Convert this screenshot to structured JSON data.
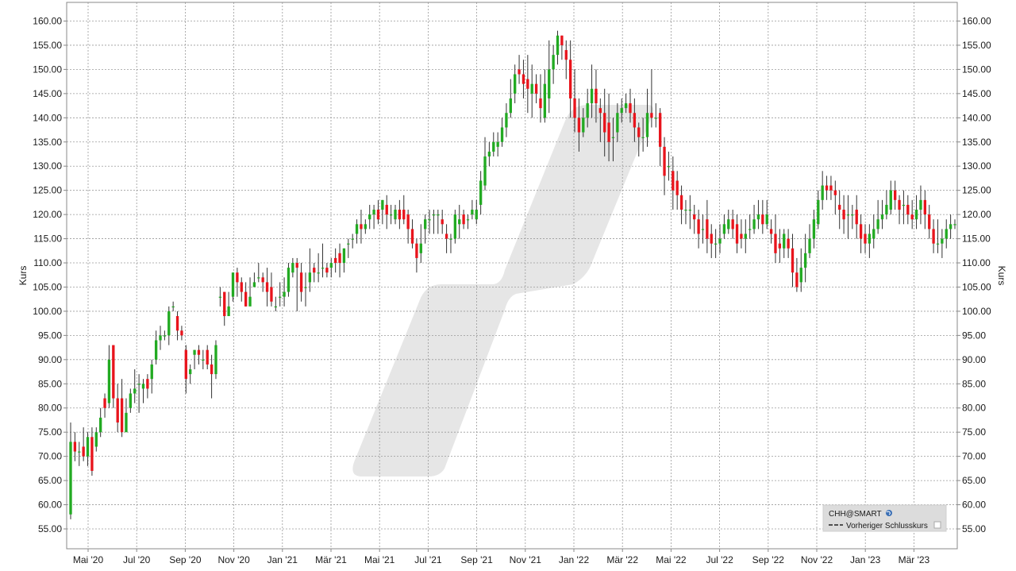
{
  "colors": {
    "up": "#22aa22",
    "down": "#e8141c",
    "grid": "#9a9a9a",
    "frame": "#888888",
    "watermark": "#e6e6e6",
    "legend_bg": "#dcdcdc"
  },
  "legend": {
    "symbol": "CHH@SMART",
    "symbol_icon": "globe-icon",
    "prev_close_label": "Vorheriger Schlusskurs"
  },
  "chart_data": {
    "type": "candlestick",
    "ylabel": "Kurs",
    "ylim": [
      51,
      163
    ],
    "y_ticks": [
      55,
      60,
      65,
      70,
      75,
      80,
      85,
      90,
      95,
      100,
      105,
      110,
      115,
      120,
      125,
      130,
      135,
      140,
      145,
      150,
      155,
      160
    ],
    "y_tick_labels": [
      "55.00",
      "60.00",
      "65.00",
      "70.00",
      "75.00",
      "80.00",
      "85.00",
      "90.00",
      "95.00",
      "100.00",
      "105.00",
      "110.00",
      "115.00",
      "120.00",
      "125.00",
      "130.00",
      "135.00",
      "140.00",
      "145.00",
      "150.00",
      "155.00",
      "160.00"
    ],
    "x_tick_labels": [
      "Mai '20",
      "Jul '20",
      "Sep '20",
      "Nov '20",
      "Jan '21",
      "Mär '21",
      "Mai '21",
      "Jul '21",
      "Sep '21",
      "Nov '21",
      "Jan '22",
      "Mär '22",
      "Mai '22",
      "Jul '22",
      "Sep '22",
      "Nov '22",
      "Jan '23",
      "Mär '23"
    ],
    "grid": true,
    "legend_position": "bottom-right",
    "candles": [
      [
        58,
        73,
        57,
        77
      ],
      [
        73,
        71,
        69,
        75
      ],
      [
        71,
        71,
        68,
        73
      ],
      [
        72,
        70,
        69,
        76
      ],
      [
        70,
        74,
        68,
        75
      ],
      [
        74,
        67,
        66,
        76
      ],
      [
        72,
        75,
        71,
        76
      ],
      [
        75,
        78,
        74,
        80
      ],
      [
        82,
        80,
        78,
        83
      ],
      [
        81,
        90,
        80,
        93
      ],
      [
        93,
        82,
        80,
        93
      ],
      [
        82,
        77,
        75,
        85
      ],
      [
        82,
        75,
        74,
        86
      ],
      [
        75,
        79,
        75,
        82
      ],
      [
        80,
        83,
        79,
        84
      ],
      [
        83,
        84,
        81,
        88
      ],
      [
        85,
        85,
        79,
        87
      ],
      [
        84,
        85,
        81,
        86
      ],
      [
        86,
        84,
        82,
        87
      ],
      [
        86,
        89,
        83,
        90
      ],
      [
        90,
        94,
        89,
        96
      ],
      [
        94,
        95,
        92,
        97
      ],
      [
        95,
        95,
        94,
        96
      ],
      [
        95,
        100,
        93,
        101
      ],
      [
        101,
        101,
        100,
        102
      ],
      [
        99,
        96,
        94,
        100
      ],
      [
        96,
        95,
        94,
        97
      ],
      [
        92,
        86,
        83,
        93
      ],
      [
        87,
        88,
        85,
        89
      ],
      [
        91,
        92,
        88,
        92
      ],
      [
        92,
        91,
        89,
        93
      ],
      [
        90,
        90,
        88,
        92
      ],
      [
        92,
        89,
        88,
        93
      ],
      [
        89,
        87,
        82,
        91
      ],
      [
        87,
        93,
        86,
        94
      ],
      [
        103,
        103,
        101,
        105
      ],
      [
        104,
        99,
        97,
        104
      ],
      [
        99,
        101,
        99,
        104
      ],
      [
        103,
        108,
        102,
        108
      ],
      [
        108,
        106,
        103,
        109
      ],
      [
        106,
        104,
        102,
        107
      ],
      [
        104,
        101,
        101,
        106
      ],
      [
        101,
        103,
        102,
        107
      ],
      [
        105,
        106,
        105,
        108
      ],
      [
        107,
        107,
        106,
        110
      ],
      [
        107,
        106,
        104,
        108
      ],
      [
        106,
        104,
        101,
        109
      ],
      [
        105,
        102,
        101,
        108
      ],
      [
        101,
        101,
        100,
        103
      ],
      [
        103,
        103,
        101,
        106
      ],
      [
        103,
        104,
        101,
        107
      ],
      [
        104,
        109,
        103,
        110
      ],
      [
        108,
        110,
        107,
        111
      ],
      [
        110,
        109,
        100,
        111
      ],
      [
        108,
        104,
        102,
        110
      ],
      [
        105,
        105,
        101,
        108
      ],
      [
        106,
        108,
        104,
        113
      ],
      [
        109,
        108,
        106,
        110
      ],
      [
        108,
        108,
        106,
        112
      ],
      [
        109,
        109,
        107,
        114
      ],
      [
        109,
        108,
        107,
        110
      ],
      [
        109,
        110,
        107,
        111
      ],
      [
        111,
        110,
        108,
        113
      ],
      [
        112,
        110,
        107,
        114
      ],
      [
        110,
        113,
        108,
        113
      ],
      [
        114,
        114,
        111,
        115
      ],
      [
        115,
        115,
        113,
        116
      ],
      [
        116,
        118,
        114,
        119
      ],
      [
        118,
        117,
        114,
        121
      ],
      [
        117,
        118,
        116,
        119
      ],
      [
        119,
        120,
        117,
        122
      ],
      [
        120,
        121,
        117,
        122
      ],
      [
        121,
        119,
        118,
        123
      ],
      [
        121,
        123,
        118,
        123
      ],
      [
        122,
        120,
        117,
        124
      ],
      [
        120,
        120,
        118,
        122
      ],
      [
        119,
        121,
        118,
        122
      ],
      [
        121,
        119,
        117,
        123
      ],
      [
        121,
        119,
        118,
        124
      ],
      [
        120,
        117,
        114,
        121
      ],
      [
        117,
        114,
        113,
        119
      ],
      [
        114,
        111,
        108,
        115
      ],
      [
        112,
        114,
        110,
        118
      ],
      [
        117,
        119,
        114,
        120
      ],
      [
        119,
        119,
        116,
        121
      ],
      [
        120,
        120,
        116,
        121
      ],
      [
        120,
        120,
        116,
        121
      ],
      [
        119,
        118,
        116,
        121
      ],
      [
        116,
        115,
        112,
        118
      ],
      [
        115,
        115,
        112,
        116
      ],
      [
        115,
        120,
        114,
        121
      ],
      [
        118,
        119,
        115,
        122
      ],
      [
        120,
        118,
        117,
        121
      ],
      [
        119,
        119,
        117,
        120
      ],
      [
        120,
        121,
        119,
        123
      ],
      [
        119,
        121,
        118,
        123
      ],
      [
        122,
        127,
        120,
        129
      ],
      [
        126,
        132,
        125,
        136
      ],
      [
        132,
        133,
        130,
        135
      ],
      [
        133,
        135,
        132,
        137
      ],
      [
        134,
        135,
        132,
        137
      ],
      [
        135,
        138,
        134,
        140
      ],
      [
        138,
        141,
        136,
        143
      ],
      [
        141,
        144,
        140,
        148
      ],
      [
        145,
        149,
        143,
        151
      ],
      [
        150,
        149,
        147,
        153
      ],
      [
        149,
        147,
        144,
        152
      ],
      [
        148,
        146,
        141,
        153
      ],
      [
        145,
        147,
        140,
        151
      ],
      [
        147,
        145,
        143,
        149
      ],
      [
        144,
        142,
        139,
        149
      ],
      [
        140,
        147,
        139,
        150
      ],
      [
        144,
        150,
        141,
        156
      ],
      [
        150,
        153,
        147,
        155
      ],
      [
        153,
        157,
        151,
        158
      ],
      [
        157,
        155,
        152,
        157
      ],
      [
        154,
        152,
        148,
        156
      ],
      [
        152,
        144,
        140,
        156
      ],
      [
        144,
        140,
        137,
        150
      ],
      [
        140,
        137,
        133,
        144
      ],
      [
        137,
        140,
        136,
        142
      ],
      [
        140,
        143,
        138,
        146
      ],
      [
        143,
        146,
        140,
        151
      ],
      [
        146,
        143,
        139,
        150
      ],
      [
        142,
        141,
        135,
        144
      ],
      [
        141,
        137,
        132,
        146
      ],
      [
        139,
        135,
        131,
        145
      ],
      [
        136,
        136,
        131,
        140
      ],
      [
        137,
        141,
        135,
        143
      ],
      [
        141,
        142,
        139,
        144
      ],
      [
        142,
        143,
        141,
        145
      ],
      [
        143,
        141,
        139,
        146
      ],
      [
        141,
        138,
        135,
        144
      ],
      [
        138,
        136,
        132,
        139
      ],
      [
        136,
        136,
        133,
        140
      ],
      [
        136,
        141,
        134,
        146
      ],
      [
        141,
        140,
        138,
        150
      ],
      [
        140,
        140,
        138,
        143
      ],
      [
        141,
        134,
        130,
        142
      ],
      [
        134,
        128,
        124,
        136
      ],
      [
        130,
        130,
        127,
        133
      ],
      [
        129,
        125,
        121,
        132
      ],
      [
        127,
        124,
        121,
        129
      ],
      [
        124,
        121,
        118,
        126
      ],
      [
        121,
        121,
        118,
        123
      ],
      [
        121,
        121,
        117,
        124
      ],
      [
        120,
        119,
        116,
        122
      ],
      [
        119,
        116,
        113,
        121
      ],
      [
        117,
        117,
        114,
        120
      ],
      [
        119,
        115,
        112,
        123
      ],
      [
        116,
        114,
        111,
        118
      ],
      [
        114,
        114,
        111,
        117
      ],
      [
        114,
        115,
        112,
        118
      ],
      [
        116,
        118,
        115,
        120
      ],
      [
        117,
        119,
        116,
        121
      ],
      [
        119,
        117,
        115,
        121
      ],
      [
        118,
        114,
        112,
        120
      ],
      [
        116,
        115,
        113,
        119
      ],
      [
        115,
        116,
        112,
        119
      ],
      [
        117,
        117,
        115,
        120
      ],
      [
        117,
        119,
        116,
        122
      ],
      [
        119,
        120,
        117,
        123
      ],
      [
        120,
        118,
        116,
        123
      ],
      [
        118,
        120,
        117,
        123
      ],
      [
        117,
        116,
        114,
        119
      ],
      [
        116,
        112,
        110,
        120
      ],
      [
        114,
        113,
        110,
        117
      ],
      [
        113,
        116,
        111,
        117
      ],
      [
        115,
        113,
        111,
        117
      ],
      [
        113,
        108,
        105,
        116
      ],
      [
        108,
        105,
        104,
        111
      ],
      [
        106,
        109,
        104,
        113
      ],
      [
        109,
        112,
        106,
        116
      ],
      [
        112,
        115,
        111,
        118
      ],
      [
        115,
        119,
        113,
        121
      ],
      [
        118,
        123,
        117,
        125
      ],
      [
        123,
        126,
        121,
        129
      ],
      [
        126,
        125,
        123,
        128
      ],
      [
        126,
        125,
        123,
        128
      ],
      [
        125,
        124,
        120,
        127
      ],
      [
        122,
        121,
        117,
        125
      ],
      [
        121,
        119,
        116,
        124
      ],
      [
        120,
        120,
        115,
        124
      ],
      [
        120,
        120,
        117,
        122
      ],
      [
        121,
        118,
        115,
        124
      ],
      [
        118,
        115,
        112,
        120
      ],
      [
        116,
        114,
        112,
        118
      ],
      [
        114,
        116,
        111,
        118
      ],
      [
        115,
        117,
        113,
        120
      ],
      [
        117,
        119,
        116,
        123
      ],
      [
        119,
        120,
        117,
        123
      ],
      [
        120,
        122,
        119,
        125
      ],
      [
        121,
        125,
        120,
        127
      ],
      [
        125,
        123,
        121,
        127
      ],
      [
        123,
        121,
        118,
        124
      ],
      [
        122,
        122,
        118,
        125
      ],
      [
        122,
        120,
        118,
        124
      ],
      [
        120,
        119,
        117,
        123
      ],
      [
        119,
        121,
        117,
        124
      ],
      [
        121,
        123,
        118,
        126
      ],
      [
        123,
        120,
        117,
        125
      ],
      [
        120,
        117,
        115,
        122
      ],
      [
        117,
        114,
        112,
        119
      ],
      [
        114,
        114,
        112,
        119
      ],
      [
        114,
        115,
        111,
        117
      ],
      [
        115,
        117,
        113,
        119
      ],
      [
        117,
        118,
        115,
        120
      ],
      [
        118,
        118,
        117,
        119
      ]
    ]
  }
}
